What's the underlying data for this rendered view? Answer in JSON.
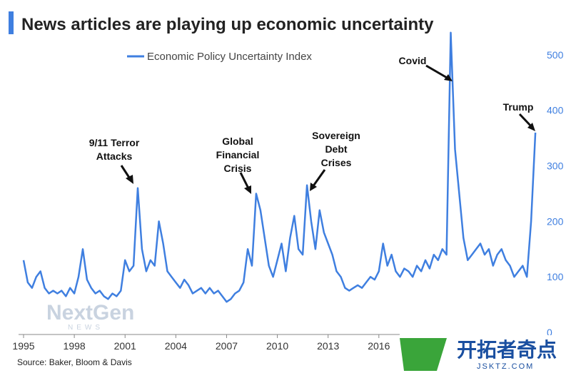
{
  "chart_data": {
    "type": "line",
    "title": "News articles are playing up economic uncertainty",
    "source": "Source: Baker, Bloom & Davis",
    "watermarks": [
      "NextGen",
      "NEWS",
      "开拓者奇点",
      "JSKTZ.COM"
    ],
    "annotations": [
      {
        "lines": [
          "9/11 Terror",
          "Attacks"
        ]
      },
      {
        "lines": [
          "Global",
          "Financial",
          "Crisis"
        ]
      },
      {
        "lines": [
          "Sovereign",
          "Debt",
          "Crises"
        ]
      },
      {
        "lines": [
          "Covid"
        ]
      },
      {
        "lines": [
          "Trump"
        ]
      }
    ],
    "x": [
      1995,
      1995.25,
      1995.5,
      1995.75,
      1996,
      1996.25,
      1996.5,
      1996.75,
      1997,
      1997.25,
      1997.5,
      1997.75,
      1998,
      1998.25,
      1998.5,
      1998.75,
      1999,
      1999.25,
      1999.5,
      1999.75,
      2000,
      2000.25,
      2000.5,
      2000.75,
      2001,
      2001.25,
      2001.5,
      2001.75,
      2002,
      2002.25,
      2002.5,
      2002.75,
      2003,
      2003.25,
      2003.5,
      2003.75,
      2004,
      2004.25,
      2004.5,
      2004.75,
      2005,
      2005.25,
      2005.5,
      2005.75,
      2006,
      2006.25,
      2006.5,
      2006.75,
      2007,
      2007.25,
      2007.5,
      2007.75,
      2008,
      2008.25,
      2008.5,
      2008.75,
      2009,
      2009.25,
      2009.5,
      2009.75,
      2010,
      2010.25,
      2010.5,
      2010.75,
      2011,
      2011.25,
      2011.5,
      2011.75,
      2012,
      2012.25,
      2012.5,
      2012.75,
      2013,
      2013.25,
      2013.5,
      2013.75,
      2014,
      2014.25,
      2014.5,
      2014.75,
      2015,
      2015.25,
      2015.5,
      2015.75,
      2016,
      2016.25,
      2016.5,
      2016.75,
      2017,
      2017.25,
      2017.5,
      2017.75,
      2018,
      2018.25,
      2018.5,
      2018.75,
      2019,
      2019.25,
      2019.5,
      2019.75,
      2020,
      2020.25,
      2020.5,
      2020.75,
      2021,
      2021.25,
      2021.5,
      2021.75,
      2022,
      2022.25,
      2022.5,
      2022.75,
      2023,
      2023.25,
      2023.5,
      2023.75,
      2024,
      2024.25,
      2024.5,
      2024.75,
      2025,
      2025.25
    ],
    "series": [
      {
        "name": "Economic Policy Uncertainty Index",
        "color": "#3f7fe0",
        "values": [
          130,
          90,
          80,
          100,
          110,
          80,
          70,
          75,
          70,
          75,
          65,
          80,
          70,
          100,
          150,
          95,
          80,
          70,
          75,
          65,
          60,
          70,
          65,
          75,
          130,
          110,
          120,
          260,
          150,
          110,
          130,
          120,
          200,
          160,
          110,
          100,
          90,
          80,
          95,
          85,
          70,
          75,
          80,
          70,
          80,
          70,
          75,
          65,
          55,
          60,
          70,
          75,
          90,
          150,
          120,
          250,
          220,
          170,
          120,
          100,
          130,
          160,
          110,
          170,
          210,
          150,
          140,
          265,
          200,
          150,
          220,
          180,
          160,
          140,
          110,
          100,
          80,
          75,
          80,
          85,
          80,
          90,
          100,
          95,
          110,
          160,
          120,
          140,
          110,
          100,
          115,
          110,
          100,
          120,
          110,
          130,
          115,
          140,
          130,
          150,
          140,
          540,
          330,
          250,
          170,
          130,
          140,
          150,
          160,
          140,
          150,
          120,
          140,
          150,
          130,
          120,
          100,
          110,
          120,
          100,
          200,
          360
        ]
      }
    ],
    "xlim": [
      1995,
      2025.5
    ],
    "ylim": [
      0,
      550
    ],
    "xticks": [
      1995,
      1998,
      2001,
      2004,
      2007,
      2010,
      2013,
      2016
    ],
    "yticks": [
      0,
      100,
      200,
      300,
      400,
      500
    ],
    "legend": "top-left"
  }
}
